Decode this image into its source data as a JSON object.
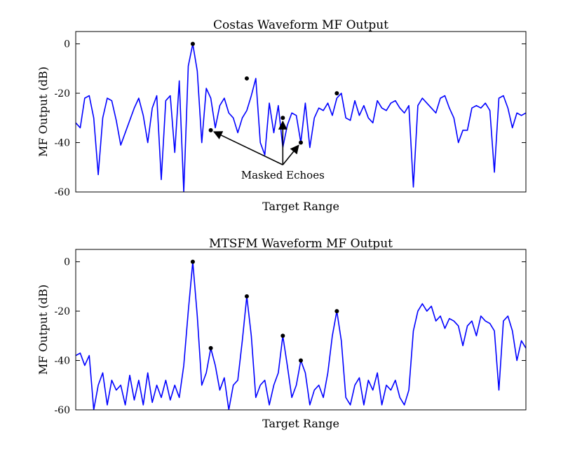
{
  "chart_data": [
    {
      "type": "line",
      "title": "Costas Waveform MF Output",
      "xlabel": "Target Range",
      "ylabel": "MF Output (dB)",
      "ylim": [
        -60,
        5
      ],
      "yticks": [
        0,
        -20,
        -40,
        -60
      ],
      "ytick_labels": [
        "0",
        "-20",
        "-40",
        "-60"
      ],
      "xticks_shown": false,
      "grid": false,
      "line_color": "#0000ff",
      "series": [
        {
          "x": [
            0,
            1,
            2,
            3,
            4,
            5,
            6,
            7,
            8,
            9,
            10,
            11,
            12,
            13,
            14,
            15,
            16,
            17,
            18,
            19,
            20,
            21,
            22,
            23,
            24,
            25,
            26,
            27,
            28,
            29,
            30,
            31,
            32,
            33,
            34,
            35,
            36,
            37,
            38,
            39,
            40,
            41,
            42,
            43,
            44,
            45,
            46,
            47,
            48,
            49,
            50,
            51,
            52,
            53,
            54,
            55,
            56,
            57,
            58,
            59,
            60,
            61,
            62,
            63,
            64,
            65,
            66,
            67,
            68,
            69,
            70,
            71,
            72,
            73,
            74,
            75,
            76,
            77,
            78,
            79,
            80,
            81,
            82,
            83,
            84,
            85,
            86,
            87,
            88,
            89,
            90,
            91,
            92,
            93,
            94,
            95,
            96,
            97,
            98,
            99,
            100
          ],
          "values": [
            -32,
            -34,
            -22,
            -21,
            -30,
            -53,
            -30,
            -22,
            -23,
            -31,
            -41,
            -36,
            -31,
            -26,
            -22,
            -29,
            -40,
            -26,
            -21,
            -55,
            -23,
            -21,
            -44,
            -15,
            -60,
            -9,
            0,
            -11,
            -40,
            -18,
            -22,
            -34,
            -25,
            -22,
            -28,
            -30,
            -36,
            -30,
            -27,
            -21,
            -14,
            -40,
            -45,
            -24,
            -36,
            -25,
            -42,
            -33,
            -28,
            -29,
            -40,
            -24,
            -42,
            -30,
            -26,
            -27,
            -24,
            -29,
            -22,
            -20,
            -30,
            -31,
            -23,
            -29,
            -25,
            -30,
            -32,
            -23,
            -26,
            -27,
            -24,
            -23,
            -26,
            -28,
            -25,
            -58,
            -25,
            -22,
            -24,
            -26,
            -28,
            -22,
            -21,
            -26,
            -30,
            -40,
            -35,
            -35,
            -26,
            -25,
            -26,
            -24,
            -27,
            -52,
            -22,
            -21,
            -26,
            -34,
            -28,
            -29,
            -28
          ]
        }
      ],
      "markers": [
        {
          "x": 26,
          "y": 0
        },
        {
          "x": 38,
          "y": -14
        },
        {
          "x": 30,
          "y": -35
        },
        {
          "x": 46,
          "y": -30
        },
        {
          "x": 50,
          "y": -40
        },
        {
          "x": 58,
          "y": -20
        }
      ],
      "annotation": {
        "text": "Masked Echoes",
        "origin": {
          "x": 46,
          "y": -49
        },
        "targets": [
          {
            "x": 30,
            "y": -35
          },
          {
            "x": 46,
            "y": -30
          },
          {
            "x": 50,
            "y": -40
          }
        ]
      }
    },
    {
      "type": "line",
      "title": "MTSFM Waveform MF Output",
      "xlabel": "Target Range",
      "ylabel": "MF Output (dB)",
      "ylim": [
        -60,
        5
      ],
      "yticks": [
        0,
        -20,
        -40,
        -60
      ],
      "ytick_labels": [
        "0",
        "-20",
        "-40",
        "-60"
      ],
      "xticks_shown": false,
      "grid": false,
      "line_color": "#0000ff",
      "series": [
        {
          "x": [
            0,
            1,
            2,
            3,
            4,
            5,
            6,
            7,
            8,
            9,
            10,
            11,
            12,
            13,
            14,
            15,
            16,
            17,
            18,
            19,
            20,
            21,
            22,
            23,
            24,
            25,
            26,
            27,
            28,
            29,
            30,
            31,
            32,
            33,
            34,
            35,
            36,
            37,
            38,
            39,
            40,
            41,
            42,
            43,
            44,
            45,
            46,
            47,
            48,
            49,
            50,
            51,
            52,
            53,
            54,
            55,
            56,
            57,
            58,
            59,
            60,
            61,
            62,
            63,
            64,
            65,
            66,
            67,
            68,
            69,
            70,
            71,
            72,
            73,
            74,
            75,
            76,
            77,
            78,
            79,
            80,
            81,
            82,
            83,
            84,
            85,
            86,
            87,
            88,
            89,
            90,
            91,
            92,
            93,
            94,
            95,
            96,
            97,
            98,
            99,
            100
          ],
          "values": [
            -38,
            -37,
            -42,
            -38,
            -60,
            -50,
            -45,
            -58,
            -48,
            -52,
            -50,
            -58,
            -46,
            -56,
            -48,
            -58,
            -45,
            -57,
            -50,
            -55,
            -48,
            -56,
            -50,
            -55,
            -42,
            -20,
            0,
            -22,
            -50,
            -45,
            -35,
            -42,
            -52,
            -47,
            -60,
            -50,
            -48,
            -32,
            -14,
            -30,
            -55,
            -50,
            -48,
            -58,
            -50,
            -45,
            -30,
            -42,
            -55,
            -50,
            -40,
            -45,
            -58,
            -52,
            -50,
            -55,
            -45,
            -30,
            -20,
            -32,
            -55,
            -58,
            -50,
            -47,
            -58,
            -48,
            -52,
            -45,
            -58,
            -50,
            -52,
            -48,
            -55,
            -58,
            -52,
            -28,
            -20,
            -17,
            -20,
            -18,
            -24,
            -22,
            -27,
            -23,
            -24,
            -26,
            -34,
            -26,
            -24,
            -30,
            -22,
            -24,
            -25,
            -28,
            -52,
            -24,
            -22,
            -28,
            -40,
            -32,
            -35
          ]
        }
      ],
      "markers": [
        {
          "x": 26,
          "y": 0
        },
        {
          "x": 30,
          "y": -35
        },
        {
          "x": 38,
          "y": -14
        },
        {
          "x": 46,
          "y": -30
        },
        {
          "x": 50,
          "y": -40
        },
        {
          "x": 58,
          "y": -20
        }
      ]
    }
  ]
}
